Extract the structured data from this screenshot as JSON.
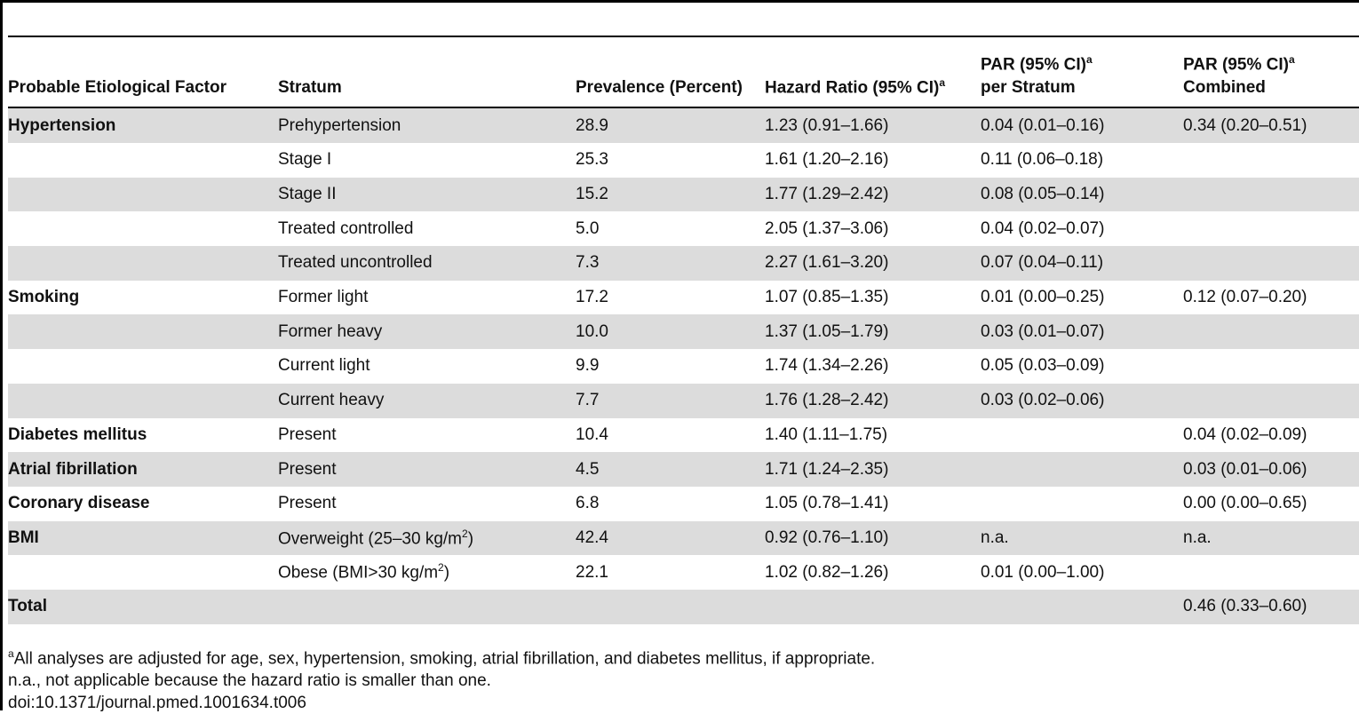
{
  "header": {
    "factor": "Probable Etiological Factor",
    "stratum": "Stratum",
    "prevalence": "Prevalence (Percent)",
    "hr": "Hazard Ratio (95% CI)",
    "par_stratum": "PAR (95% CI)",
    "par_stratum_tail": "per Stratum",
    "par_combined": "PAR (95% CI)",
    "par_combined_tail": "Combined",
    "sup": "a"
  },
  "rows": [
    {
      "factor": "Hypertension",
      "stratum": "Prehypertension",
      "prev": "28.9",
      "hr": "1.23 (0.91–1.66)",
      "par": "0.04 (0.01–0.16)",
      "comb": "0.34 (0.20–0.51)",
      "shade": true
    },
    {
      "factor": "",
      "stratum": "Stage I",
      "prev": "25.3",
      "hr": "1.61 (1.20–2.16)",
      "par": "0.11 (0.06–0.18)",
      "comb": "",
      "shade": false
    },
    {
      "factor": "",
      "stratum": "Stage II",
      "prev": "15.2",
      "hr": "1.77 (1.29–2.42)",
      "par": "0.08 (0.05–0.14)",
      "comb": "",
      "shade": true
    },
    {
      "factor": "",
      "stratum": "Treated controlled",
      "prev": "5.0",
      "hr": "2.05 (1.37–3.06)",
      "par": "0.04 (0.02–0.07)",
      "comb": "",
      "shade": false
    },
    {
      "factor": "",
      "stratum": "Treated uncontrolled",
      "prev": "7.3",
      "hr": "2.27 (1.61–3.20)",
      "par": "0.07 (0.04–0.11)",
      "comb": "",
      "shade": true
    },
    {
      "factor": "Smoking",
      "stratum": "Former light",
      "prev": "17.2",
      "hr": "1.07 (0.85–1.35)",
      "par": "0.01 (0.00–0.25)",
      "comb": "0.12 (0.07–0.20)",
      "shade": false
    },
    {
      "factor": "",
      "stratum": "Former heavy",
      "prev": "10.0",
      "hr": "1.37 (1.05–1.79)",
      "par": "0.03 (0.01–0.07)",
      "comb": "",
      "shade": true
    },
    {
      "factor": "",
      "stratum": "Current light",
      "prev": "9.9",
      "hr": "1.74 (1.34–2.26)",
      "par": "0.05 (0.03–0.09)",
      "comb": "",
      "shade": false
    },
    {
      "factor": "",
      "stratum": "Current heavy",
      "prev": "7.7",
      "hr": "1.76 (1.28–2.42)",
      "par": "0.03 (0.02–0.06)",
      "comb": "",
      "shade": true
    },
    {
      "factor": "Diabetes mellitus",
      "stratum": "Present",
      "prev": "10.4",
      "hr": "1.40 (1.11–1.75)",
      "par": "",
      "comb": "0.04 (0.02–0.09)",
      "shade": false
    },
    {
      "factor": "Atrial fibrillation",
      "stratum": "Present",
      "prev": "4.5",
      "hr": "1.71 (1.24–2.35)",
      "par": "",
      "comb": "0.03 (0.01–0.06)",
      "shade": true
    },
    {
      "factor": "Coronary disease",
      "stratum": "Present",
      "prev": "6.8",
      "hr": "1.05 (0.78–1.41)",
      "par": "",
      "comb": "0.00 (0.00–0.65)",
      "shade": false
    },
    {
      "factor": "BMI",
      "stratum": "Overweight (25–30 kg/m",
      "stratum_sup": "2",
      "stratum_tail": ")",
      "prev": "42.4",
      "hr": "0.92 (0.76–1.10)",
      "par": "n.a.",
      "comb": "n.a.",
      "shade": true
    },
    {
      "factor": "",
      "stratum": "Obese (BMI>30 kg/m",
      "stratum_sup": "2",
      "stratum_tail": ")",
      "prev": "22.1",
      "hr": "1.02 (0.82–1.26)",
      "par": "0.01 (0.00–1.00)",
      "comb": "",
      "shade": false
    },
    {
      "factor": "Total",
      "stratum": "",
      "prev": "",
      "hr": "",
      "par": "",
      "comb": "0.46 (0.33–0.60)",
      "shade": true
    }
  ],
  "footnotes": {
    "a_mark": "a",
    "a_text": "All analyses are adjusted for age, sex, hypertension, smoking, atrial fibrillation, and diabetes mellitus, if appropriate.",
    "na": "n.a., not applicable because the hazard ratio is smaller than one.",
    "doi": "doi:10.1371/journal.pmed.1001634.t006"
  }
}
